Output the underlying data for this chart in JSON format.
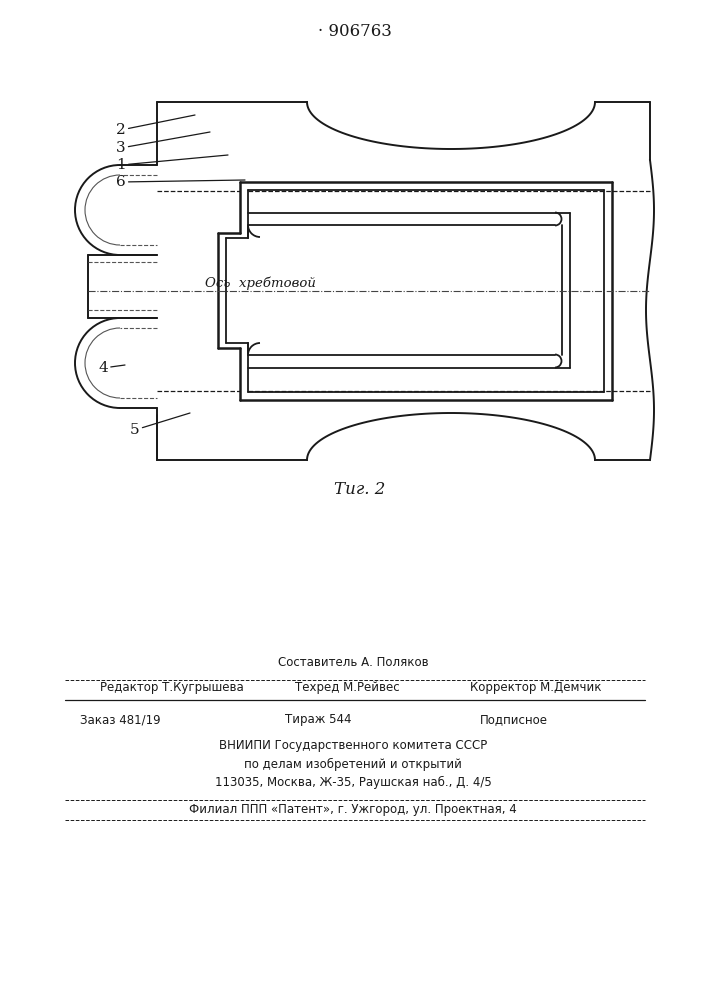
{
  "patent_number": "· 906763",
  "fig_caption": "Τиг. 2",
  "axis_text": "Ось  хребтовой",
  "bg_color": "#ffffff",
  "lc": "#1a1a1a",
  "labels": [
    "2",
    "3",
    "1",
    "6",
    "4",
    "5"
  ],
  "footer_sostavitel": "Составитель А. Поляков",
  "footer_redaktor": "Редактор Т.Кугрышева",
  "footer_tehred": "Техред М.Рейвес",
  "footer_korrektor": "Корректор М.Демчик",
  "footer_zakaz": "Заказ 481/19",
  "footer_tirazh": "Тираж 544",
  "footer_podp": "Подписное",
  "footer_vniip1": "ВНИИПИ Государственного комитета СССР",
  "footer_vniip2": "по делам изобретений и открытий",
  "footer_addr": "113035, Москва, Ж-35, Раушская наб., Д. 4/5",
  "footer_filial": "Филиал ППП «Патент», г. Ужгород, ул. Проектная, 4"
}
